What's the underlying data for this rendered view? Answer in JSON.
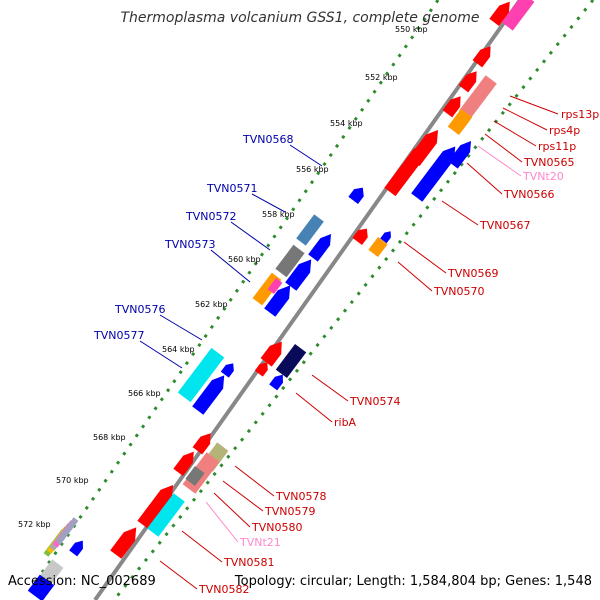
{
  "title": "Thermoplasma volcanium GSS1, complete genome",
  "footer": {
    "accession": "Accession: NC_002689",
    "summary": "Topology: circular; Length: 1,584,804 bp; Genes: 1,548"
  },
  "colors": {
    "backbone": "#888888",
    "tick_dots": "#2e8b2e",
    "forward_strand_label": "#0000aa",
    "reverse_strand_label": "#cc0000",
    "rna_label": "#ff88cc",
    "red": "#ff0000",
    "blue": "#0000ff",
    "pink": "#ff40b0",
    "salmon": "#f08080",
    "orange": "#ff9900",
    "steel": "#4682b4",
    "gray": "#777777",
    "cyan": "#00e5ee",
    "olive": "#b4b478",
    "navy": "#0a0a5a"
  },
  "kbp_ticks": [
    "550 kbp",
    "552 kbp",
    "554 kbp",
    "556 kbp",
    "558 kbp",
    "560 kbp",
    "562 kbp",
    "564 kbp",
    "566 kbp",
    "568 kbp",
    "570 kbp",
    "572 kbp"
  ],
  "labels_left": [
    "TVN0568",
    "TVN0571",
    "TVN0572",
    "TVN0573",
    "TVN0576",
    "TVN0577"
  ],
  "labels_right": [
    {
      "text": "rps13p",
      "kind": "gene"
    },
    {
      "text": "rps4p",
      "kind": "gene"
    },
    {
      "text": "rps11p",
      "kind": "gene"
    },
    {
      "text": "TVN0565",
      "kind": "gene"
    },
    {
      "text": "TVNt20",
      "kind": "rna"
    },
    {
      "text": "TVN0566",
      "kind": "gene"
    },
    {
      "text": "TVN0567",
      "kind": "gene"
    },
    {
      "text": "TVN0569",
      "kind": "gene"
    },
    {
      "text": "TVN0570",
      "kind": "gene"
    },
    {
      "text": "TVN0574",
      "kind": "gene"
    },
    {
      "text": "ribA",
      "kind": "gene"
    },
    {
      "text": "TVN0578",
      "kind": "gene"
    },
    {
      "text": "TVN0579",
      "kind": "gene"
    },
    {
      "text": "TVN0580",
      "kind": "gene"
    },
    {
      "text": "TVNt21",
      "kind": "rna"
    },
    {
      "text": "TVN0581",
      "kind": "gene"
    },
    {
      "text": "TVN0582",
      "kind": "gene"
    }
  ],
  "features": [
    {
      "color": "red"
    },
    {
      "color": "pink"
    },
    {
      "color": "red"
    },
    {
      "color": "red"
    },
    {
      "color": "red"
    },
    {
      "color": "salmon"
    },
    {
      "color": "orange"
    },
    {
      "color": "red"
    },
    {
      "color": "red"
    },
    {
      "color": "blue"
    },
    {
      "color": "blue"
    },
    {
      "color": "blue"
    },
    {
      "color": "red"
    },
    {
      "color": "orange"
    },
    {
      "color": "blue"
    },
    {
      "color": "steel"
    },
    {
      "color": "gray"
    },
    {
      "color": "orange"
    },
    {
      "color": "pink"
    },
    {
      "color": "blue"
    },
    {
      "color": "blue"
    },
    {
      "color": "blue"
    },
    {
      "color": "red"
    },
    {
      "color": "navy"
    },
    {
      "color": "red"
    },
    {
      "color": "blue"
    },
    {
      "color": "cyan"
    },
    {
      "color": "blue"
    },
    {
      "color": "blue"
    },
    {
      "color": "red"
    },
    {
      "color": "olive"
    },
    {
      "color": "salmon"
    },
    {
      "color": "red"
    },
    {
      "color": "gray"
    },
    {
      "color": "red"
    },
    {
      "color": "cyan"
    },
    {
      "color": "red"
    },
    {
      "color": "blue"
    }
  ]
}
